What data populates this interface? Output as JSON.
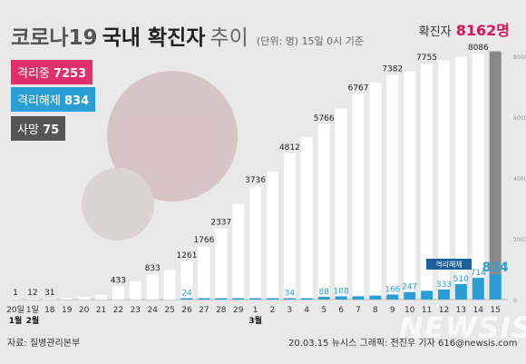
{
  "title": {
    "prefix": "코로나19",
    "bold": "국내 확진자",
    "suffix": "추이",
    "unit": "(단위: 명) 15일 0시 기준"
  },
  "total": {
    "label": "확진자",
    "value": "8162명"
  },
  "badges": {
    "isolated": {
      "label": "격리중",
      "value": "7253"
    },
    "released": {
      "label": "격리해제",
      "value": "834"
    },
    "deaths": {
      "label": "사망",
      "value": "75"
    }
  },
  "legend_released": "격리해제",
  "footer": {
    "source": "자료: 질병관리본부",
    "credit": "20.03.15 뉴시스 그래픽: 전진우 기자 616@newsis.com"
  },
  "watermark": "NEWSIS",
  "colors": {
    "confirmed_bar": "#ffffff",
    "released_bar": "#2a9fd6",
    "latest_bar": "#888888",
    "accent": "#d4145a"
  },
  "chart_data": {
    "type": "bar",
    "categories": [
      "20",
      "1",
      "18",
      "19",
      "20",
      "21",
      "22",
      "23",
      "24",
      "25",
      "26",
      "27",
      "28",
      "29",
      "1",
      "2",
      "3",
      "4",
      "5",
      "6",
      "7",
      "8",
      "9",
      "10",
      "11",
      "12",
      "13",
      "14",
      "15"
    ],
    "month_labels": [
      {
        "index": 0,
        "text": "1월"
      },
      {
        "index": 1,
        "text": "2월"
      },
      {
        "index": 14,
        "text": "3월"
      }
    ],
    "x_note": {
      "index": 0,
      "before": "20일",
      "after": "1일"
    },
    "series": [
      {
        "name": "확진자",
        "values": [
          1,
          12,
          31,
          46,
          82,
          156,
          433,
          602,
          833,
          977,
          1261,
          1766,
          2337,
          3150,
          3736,
          4212,
          4812,
          5328,
          5766,
          6284,
          6767,
          7134,
          7382,
          7513,
          7755,
          7869,
          7979,
          8086,
          8162
        ],
        "labels": [
          "1",
          "12",
          "31",
          "",
          "",
          "",
          "433",
          "",
          "833",
          "",
          "1261",
          "1766",
          "2337",
          "",
          "3736",
          "",
          "4812",
          "",
          "5766",
          "",
          "6767",
          "",
          "7382",
          "",
          "7755",
          "",
          "",
          "8086",
          ""
        ]
      },
      {
        "name": "격리해제",
        "values": [
          0,
          0,
          0,
          0,
          0,
          0,
          0,
          0,
          0,
          0,
          24,
          24,
          24,
          24,
          30,
          30,
          34,
          34,
          88,
          108,
          108,
          130,
          166,
          247,
          288,
          333,
          510,
          714,
          834
        ],
        "labels": [
          "",
          "",
          "",
          "",
          "",
          "",
          "",
          "",
          "",
          "",
          "24",
          "",
          "",
          "",
          "",
          "",
          "34",
          "",
          "88",
          "108",
          "",
          "",
          "166",
          "247",
          "",
          "333",
          "510",
          "714",
          "834"
        ]
      }
    ],
    "ylim": [
      0,
      8000
    ],
    "yticks": [
      0,
      2000,
      4000,
      6000,
      8000
    ],
    "grid": false
  }
}
